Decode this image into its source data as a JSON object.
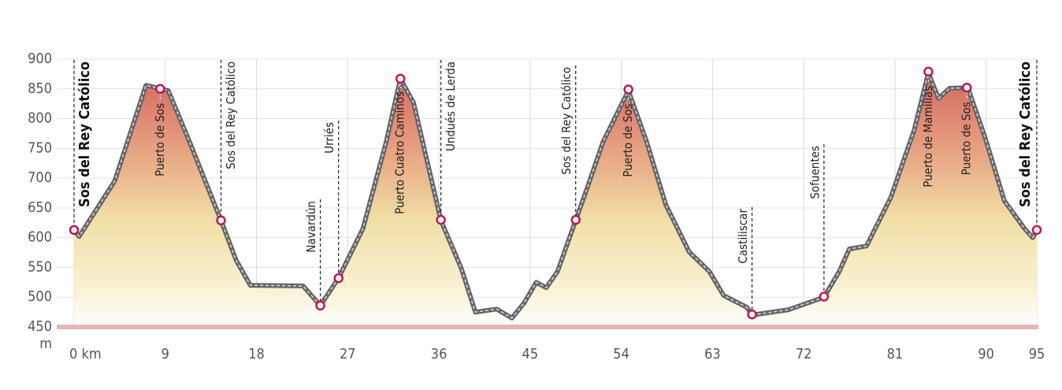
{
  "chart_data": {
    "type": "area",
    "x": [
      0,
      0.5,
      4,
      7.1,
      9.3,
      11.4,
      14.5,
      16,
      17.4,
      22.6,
      24.3,
      26.1,
      28.5,
      30.8,
      32.2,
      33.5,
      36.2,
      38.2,
      39.6,
      41.7,
      43.2,
      44.4,
      45.6,
      46.6,
      47.7,
      49.5,
      50.6,
      52.2,
      54.7,
      56.5,
      58.4,
      60.7,
      62.7,
      64.1,
      66.4,
      66.9,
      70.5,
      74,
      75.5,
      76.5,
      78.2,
      80.6,
      82.9,
      84.3,
      85.3,
      86.4,
      88.2,
      89.9,
      91.8,
      93.8,
      94.6,
      95
    ],
    "values": [
      613,
      602,
      695,
      856,
      847,
      761,
      629,
      562,
      520,
      519,
      486,
      532,
      615,
      761,
      867,
      827,
      629,
      549,
      475,
      480,
      465,
      490,
      525,
      516,
      543,
      629,
      682,
      761,
      847,
      761,
      655,
      576,
      543,
      503,
      483,
      470,
      479,
      500,
      543,
      581,
      586,
      668,
      781,
      877,
      834,
      851,
      852,
      768,
      662,
      615,
      600,
      613
    ],
    "waypoints": [
      {
        "name": "Sos del Rey Católico",
        "x": 0,
        "elevation": 613
      },
      {
        "name": "Puerto de Sos",
        "x": 8.5,
        "elevation": 850
      },
      {
        "name": "Sos del Rey Católico",
        "x": 14.5,
        "elevation": 629
      },
      {
        "name": "Navardún",
        "x": 24.3,
        "elevation": 486
      },
      {
        "name": "Urriés",
        "x": 26.1,
        "elevation": 532
      },
      {
        "name": "Puerto Cuatro Caminos",
        "x": 32.2,
        "elevation": 867
      },
      {
        "name": "Undués de Lerda",
        "x": 36.2,
        "elevation": 630
      },
      {
        "name": "Sos del Rey Católico",
        "x": 49.5,
        "elevation": 630
      },
      {
        "name": "Puerto de Sos",
        "x": 54.7,
        "elevation": 849
      },
      {
        "name": "Castiliscar",
        "x": 66.9,
        "elevation": 471
      },
      {
        "name": "Sofuentes",
        "x": 74,
        "elevation": 501
      },
      {
        "name": "Puerto de Mamillas",
        "x": 84.3,
        "elevation": 879
      },
      {
        "name": "Puerto de Sos",
        "x": 88.1,
        "elevation": 852
      },
      {
        "name": "Sos del Rey Católico",
        "x": 95,
        "elevation": 613
      }
    ],
    "xlim": [
      0,
      95
    ],
    "ylim": [
      450,
      900
    ],
    "xticks": [
      {
        "value": 0,
        "label": "0 km"
      },
      9,
      18,
      27,
      36,
      45,
      54,
      63,
      72,
      81,
      90,
      95
    ],
    "yticks": [
      450,
      500,
      550,
      600,
      650,
      700,
      750,
      800,
      850,
      900
    ],
    "y_unit_label": "m",
    "grid": true,
    "line_color": "#666666",
    "marker_color": "#c0164f"
  }
}
